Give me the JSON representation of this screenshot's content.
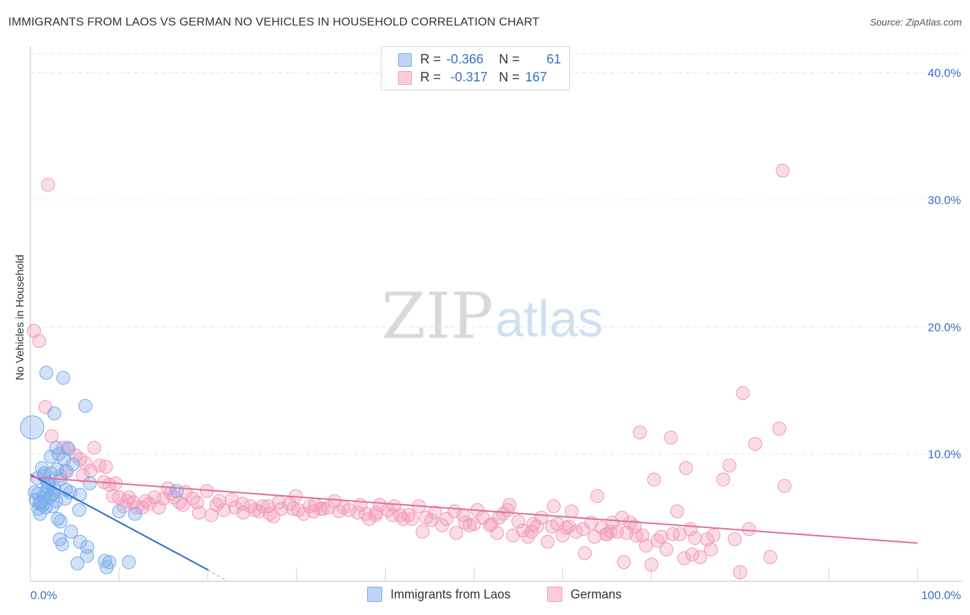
{
  "title": "IMMIGRANTS FROM LAOS VS GERMAN NO VEHICLES IN HOUSEHOLD CORRELATION CHART",
  "source": "Source: ZipAtlas.com",
  "watermark": {
    "zip": "ZIP",
    "atlas": "atlas"
  },
  "colors": {
    "blue": "#7aabea",
    "blue_line": "#2f6fd1",
    "pink": "#f29ab9",
    "pink_line": "#e0729b",
    "tick_text": "#3a6fc4"
  },
  "legend": {
    "r_label": "R =",
    "n_label": "N =",
    "rows": [
      {
        "r": "-0.366",
        "n": "61"
      },
      {
        "r": "-0.317",
        "n": "167"
      }
    ]
  },
  "chart_data": {
    "type": "scatter",
    "title": "IMMIGRANTS FROM LAOS VS GERMAN NO VEHICLES IN HOUSEHOLD CORRELATION CHART",
    "xlabel": "",
    "ylabel": "No Vehicles in Household",
    "xlim": [
      0,
      100
    ],
    "ylim": [
      0,
      41.5
    ],
    "x_tick_labels": [
      "0.0%",
      "100.0%"
    ],
    "y_ticks": [
      10,
      20,
      30,
      40
    ],
    "y_tick_labels": [
      "10.0%",
      "20.0%",
      "30.0%",
      "40.0%"
    ],
    "series": [
      {
        "name": "Immigrants from Laos",
        "color": "blue",
        "trend": {
          "x0": 0,
          "y0": 8.4,
          "x1": 20,
          "y1": 0.9,
          "dash_x1": 22,
          "dash_y1": 0.1
        },
        "points": [
          [
            0.2,
            12.1
          ],
          [
            1.8,
            16.4
          ],
          [
            3.7,
            16.0
          ],
          [
            6.2,
            13.8
          ],
          [
            2.7,
            13.2
          ],
          [
            2.9,
            10.5
          ],
          [
            4.3,
            10.4
          ],
          [
            3.2,
            10.0
          ],
          [
            2.3,
            9.8
          ],
          [
            3.8,
            9.6
          ],
          [
            1.3,
            8.9
          ],
          [
            1.6,
            8.5
          ],
          [
            2.3,
            8.5
          ],
          [
            3.4,
            8.0
          ],
          [
            0.8,
            8.1
          ],
          [
            1.9,
            7.8
          ],
          [
            2.1,
            7.7
          ],
          [
            4.0,
            8.7
          ],
          [
            6.7,
            7.7
          ],
          [
            2.7,
            7.3
          ],
          [
            4.0,
            7.2
          ],
          [
            1.8,
            7.1
          ],
          [
            0.5,
            7.0
          ],
          [
            2.6,
            6.9
          ],
          [
            2.4,
            6.8
          ],
          [
            1.4,
            6.6
          ],
          [
            0.6,
            6.4
          ],
          [
            2.9,
            6.3
          ],
          [
            5.6,
            6.8
          ],
          [
            1.0,
            6.1
          ],
          [
            1.4,
            6.0
          ],
          [
            0.9,
            5.7
          ],
          [
            1.1,
            5.3
          ],
          [
            5.5,
            5.6
          ],
          [
            10.0,
            5.5
          ],
          [
            11.8,
            5.3
          ],
          [
            16.5,
            7.1
          ],
          [
            3.1,
            4.9
          ],
          [
            3.4,
            4.7
          ],
          [
            3.3,
            3.3
          ],
          [
            3.6,
            2.9
          ],
          [
            4.6,
            3.9
          ],
          [
            5.6,
            3.1
          ],
          [
            6.4,
            2.7
          ],
          [
            6.4,
            2.0
          ],
          [
            8.4,
            1.6
          ],
          [
            8.6,
            1.1
          ],
          [
            8.9,
            1.5
          ],
          [
            11.1,
            1.5
          ],
          [
            5.3,
            1.4
          ],
          [
            1.5,
            8.3
          ],
          [
            2.0,
            7.4
          ],
          [
            0.9,
            6.9
          ],
          [
            1.2,
            6.2
          ],
          [
            3.0,
            8.8
          ],
          [
            2.5,
            5.9
          ],
          [
            4.5,
            7.0
          ],
          [
            3.9,
            6.5
          ],
          [
            1.7,
            5.8
          ],
          [
            2.2,
            6.6
          ],
          [
            4.8,
            9.2
          ]
        ],
        "sizes": [
          22
        ]
      },
      {
        "name": "Germans",
        "color": "pink",
        "trend": {
          "x0": 0,
          "y0": 8.2,
          "x1": 100,
          "y1": 3.0
        },
        "points": [
          [
            2.0,
            31.2
          ],
          [
            0.4,
            19.7
          ],
          [
            1.0,
            18.9
          ],
          [
            1.7,
            13.7
          ],
          [
            2.4,
            11.4
          ],
          [
            3.7,
            10.5
          ],
          [
            4.2,
            10.5
          ],
          [
            7.2,
            10.5
          ],
          [
            5.1,
            9.9
          ],
          [
            5.6,
            9.6
          ],
          [
            6.2,
            9.3
          ],
          [
            7.8,
            9.1
          ],
          [
            4.1,
            8.6
          ],
          [
            3.4,
            8.3
          ],
          [
            8.3,
            7.8
          ],
          [
            8.9,
            7.6
          ],
          [
            15.5,
            7.3
          ],
          [
            15.8,
            6.9
          ],
          [
            17.5,
            7.0
          ],
          [
            19.9,
            7.1
          ],
          [
            9.3,
            6.7
          ],
          [
            10.0,
            6.6
          ],
          [
            11.1,
            6.6
          ],
          [
            14.0,
            6.6
          ],
          [
            16.2,
            6.6
          ],
          [
            18.8,
            6.2
          ],
          [
            21.0,
            6.0
          ],
          [
            23.9,
            6.1
          ],
          [
            24.8,
            5.9
          ],
          [
            26.8,
            5.9
          ],
          [
            29.2,
            6.1
          ],
          [
            31.5,
            5.9
          ],
          [
            33.6,
            5.8
          ],
          [
            28.3,
            5.7
          ],
          [
            30.2,
            5.6
          ],
          [
            34.8,
            5.5
          ],
          [
            35.9,
            5.6
          ],
          [
            37.8,
            5.3
          ],
          [
            38.9,
            5.2
          ],
          [
            40.8,
            5.2
          ],
          [
            42.6,
            5.2
          ],
          [
            44.6,
            5.0
          ],
          [
            46.9,
            4.9
          ],
          [
            48.8,
            5.2
          ],
          [
            51.0,
            5.0
          ],
          [
            52.8,
            5.0
          ],
          [
            55.0,
            4.7
          ],
          [
            56.7,
            4.5
          ],
          [
            58.8,
            4.3
          ],
          [
            60.4,
            4.2
          ],
          [
            62.3,
            4.1
          ],
          [
            64.4,
            4.2
          ],
          [
            65.4,
            3.9
          ],
          [
            67.2,
            3.8
          ],
          [
            69.0,
            3.6
          ],
          [
            71.1,
            3.5
          ],
          [
            73.2,
            3.7
          ],
          [
            74.9,
            3.4
          ],
          [
            77.0,
            3.6
          ],
          [
            79.4,
            3.3
          ],
          [
            81.0,
            4.1
          ],
          [
            68.7,
            11.7
          ],
          [
            72.2,
            11.3
          ],
          [
            73.9,
            8.9
          ],
          [
            78.1,
            8.0
          ],
          [
            78.8,
            9.1
          ],
          [
            80.3,
            14.8
          ],
          [
            81.7,
            10.8
          ],
          [
            84.4,
            12.0
          ],
          [
            85.0,
            7.5
          ],
          [
            84.8,
            32.3
          ],
          [
            70.3,
            8.0
          ],
          [
            63.9,
            6.7
          ],
          [
            54.0,
            6.0
          ],
          [
            50.4,
            5.6
          ],
          [
            47.8,
            5.5
          ],
          [
            43.8,
            5.9
          ],
          [
            40.3,
            5.6
          ],
          [
            36.9,
            5.4
          ],
          [
            33.0,
            5.7
          ],
          [
            30.8,
            5.3
          ],
          [
            27.4,
            5.1
          ],
          [
            24.0,
            5.4
          ],
          [
            21.8,
            5.6
          ],
          [
            20.4,
            5.2
          ],
          [
            19.0,
            5.4
          ],
          [
            17.2,
            6.0
          ],
          [
            13.4,
            6.1
          ],
          [
            12.6,
            5.8
          ],
          [
            10.9,
            6.3
          ],
          [
            9.6,
            7.7
          ],
          [
            6.8,
            8.7
          ],
          [
            5.9,
            8.3
          ],
          [
            8.5,
            9.0
          ],
          [
            14.5,
            5.8
          ],
          [
            22.7,
            6.4
          ],
          [
            25.3,
            5.6
          ],
          [
            29.9,
            6.7
          ],
          [
            32.1,
            6.0
          ],
          [
            39.4,
            6.0
          ],
          [
            41.7,
            5.2
          ],
          [
            45.6,
            5.4
          ],
          [
            49.5,
            4.4
          ],
          [
            52.0,
            4.5
          ],
          [
            53.8,
            5.6
          ],
          [
            57.6,
            5.0
          ],
          [
            59.4,
            4.5
          ],
          [
            61.5,
            3.9
          ],
          [
            63.2,
            4.6
          ],
          [
            66.1,
            3.9
          ],
          [
            68.1,
            4.3
          ],
          [
            70.7,
            3.2
          ],
          [
            72.4,
            3.7
          ],
          [
            74.4,
            4.1
          ],
          [
            76.3,
            3.3
          ],
          [
            61.0,
            5.5
          ],
          [
            56.1,
            3.5
          ],
          [
            52.6,
            3.8
          ],
          [
            48.0,
            3.8
          ],
          [
            44.2,
            3.9
          ],
          [
            42.0,
            4.9
          ],
          [
            46.4,
            4.4
          ],
          [
            50.0,
            4.5
          ],
          [
            55.5,
            4.0
          ],
          [
            58.3,
            3.1
          ],
          [
            60.0,
            3.6
          ],
          [
            65.0,
            3.7
          ],
          [
            66.7,
            5.0
          ],
          [
            69.4,
            2.8
          ],
          [
            71.7,
            2.5
          ],
          [
            73.7,
            1.8
          ],
          [
            74.6,
            2.1
          ],
          [
            66.9,
            1.5
          ],
          [
            70.0,
            1.3
          ],
          [
            75.5,
            1.9
          ],
          [
            62.5,
            2.2
          ],
          [
            64.9,
            3.7
          ],
          [
            60.7,
            4.3
          ],
          [
            56.5,
            3.9
          ],
          [
            54.4,
            3.6
          ],
          [
            51.8,
            4.4
          ],
          [
            49.0,
            4.6
          ],
          [
            45.2,
            4.8
          ],
          [
            43.0,
            4.9
          ],
          [
            39.0,
            5.4
          ],
          [
            37.2,
            6.0
          ],
          [
            35.3,
            5.8
          ],
          [
            34.3,
            6.3
          ],
          [
            31.9,
            5.5
          ],
          [
            29.6,
            5.7
          ],
          [
            28.0,
            6.2
          ],
          [
            26.2,
            5.9
          ],
          [
            25.8,
            5.5
          ],
          [
            23.1,
            5.8
          ],
          [
            21.3,
            6.3
          ],
          [
            18.3,
            6.5
          ],
          [
            16.8,
            6.2
          ],
          [
            15.0,
            6.5
          ],
          [
            13.0,
            6.3
          ],
          [
            11.6,
            6.2
          ],
          [
            10.5,
            5.9
          ],
          [
            12.0,
            5.8
          ],
          [
            27.0,
            5.3
          ],
          [
            32.7,
            5.7
          ],
          [
            38.2,
            4.9
          ],
          [
            41.0,
            5.9
          ],
          [
            53.3,
            5.3
          ],
          [
            57.1,
            4.3
          ],
          [
            59.0,
            5.9
          ],
          [
            63.6,
            3.5
          ],
          [
            67.6,
            4.6
          ],
          [
            76.7,
            2.5
          ],
          [
            80.0,
            0.7
          ],
          [
            83.4,
            1.9
          ],
          [
            65.6,
            4.6
          ],
          [
            72.9,
            5.5
          ],
          [
            68.3,
            3.6
          ]
        ],
        "sizes": [
          22
        ]
      }
    ],
    "legend_position": "top-center"
  },
  "bottom_legend": [
    {
      "label": "Immigrants from Laos"
    },
    {
      "label": "Germans"
    }
  ]
}
